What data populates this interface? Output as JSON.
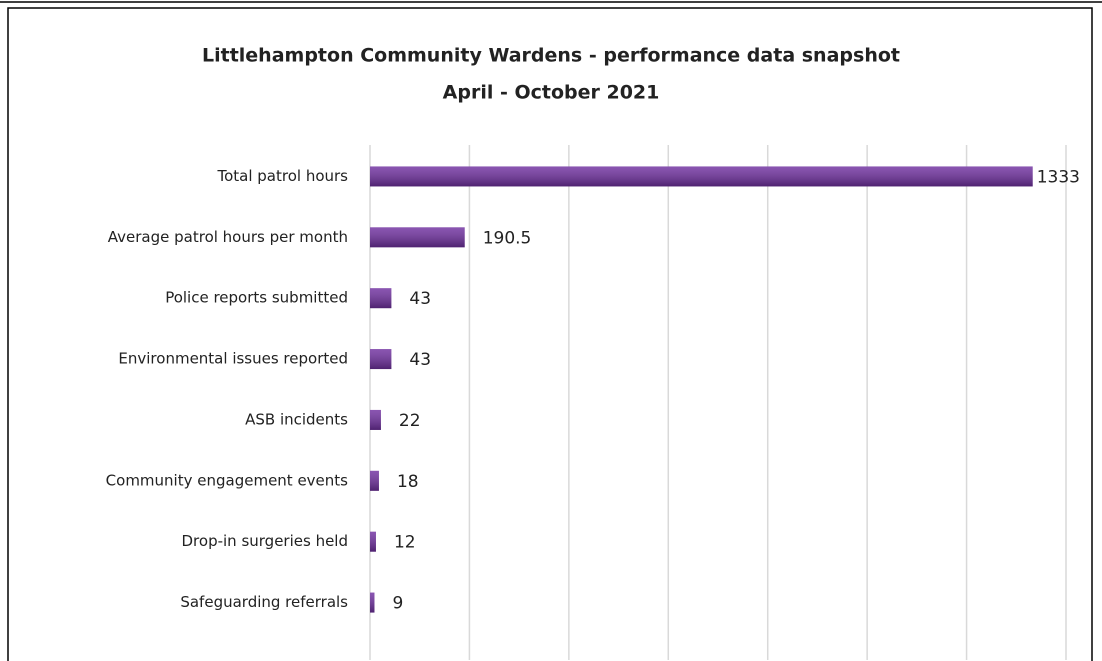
{
  "chart_data": {
    "type": "bar",
    "orientation": "horizontal",
    "title": "Littlehampton Community Wardens - performance data snapshot",
    "subtitle": "April - October 2021",
    "categories": [
      "Total patrol hours",
      "Average patrol hours per month",
      "Police reports submitted",
      "Environmental issues reported",
      "ASB incidents",
      "Community engagement events",
      "Drop-in surgeries held",
      "Safeguarding referrals"
    ],
    "values": [
      1333,
      190.5,
      43,
      43,
      22,
      18,
      12,
      9
    ],
    "color": "#7030a0",
    "xlim": [
      0,
      1400
    ],
    "xticks": [
      0,
      200,
      400,
      600,
      800,
      1000,
      1200,
      1400
    ],
    "grid": true
  }
}
